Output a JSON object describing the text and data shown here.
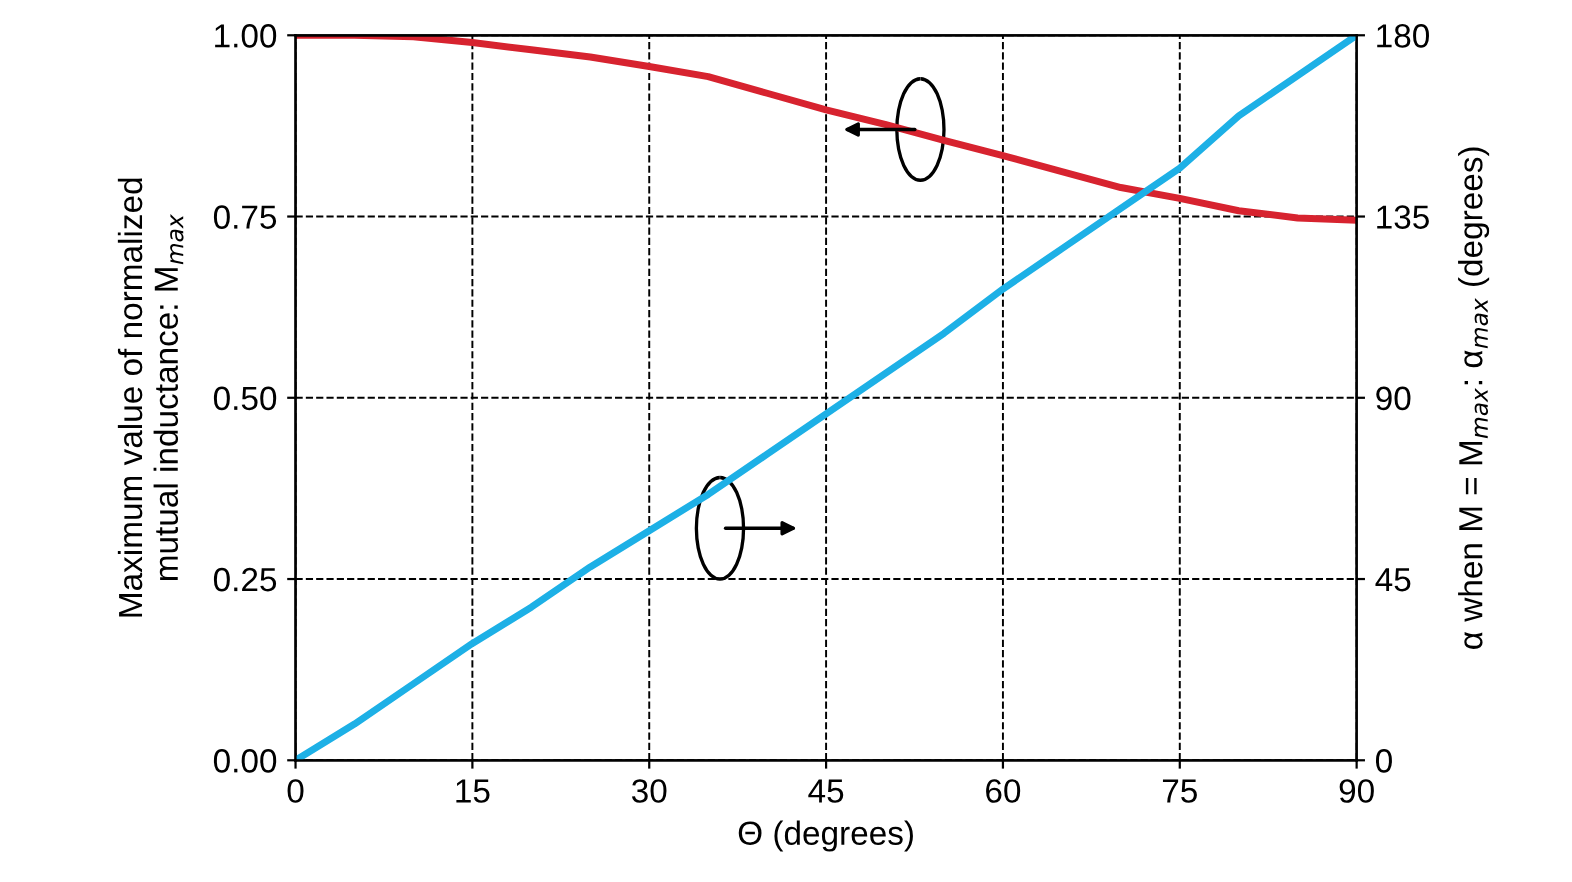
{
  "chart_data": {
    "type": "line",
    "xlabel": "Θ (degrees)",
    "ylabel": "Maximum value of normalized\nmutual inductance: M$_{max}$",
    "y2label": "α when M = M$_{max}$: α$_{max}$ (degrees)",
    "x": [
      0,
      5,
      10,
      15,
      20,
      25,
      30,
      35,
      40,
      45,
      50,
      55,
      60,
      65,
      70,
      75,
      80,
      85,
      90
    ],
    "series": [
      {
        "color": "#d7232f",
        "values": [
          1.0,
          1.0,
          0.998,
          0.99,
          0.98,
          0.97,
          0.957,
          0.943,
          0.92,
          0.897,
          0.877,
          0.855,
          0.834,
          0.812,
          0.79,
          0.775,
          0.758,
          0.748,
          0.745
        ]
      },
      {
        "color": "#1db0e6",
        "axis": "y2",
        "values": [
          0,
          9,
          19,
          29,
          38,
          48,
          57,
          66,
          76,
          86,
          96,
          106,
          117,
          127,
          137,
          147,
          160,
          170,
          180
        ]
      }
    ],
    "xlim": [
      0,
      90
    ],
    "xticks": [
      0,
      15,
      30,
      45,
      60,
      75,
      90
    ],
    "ylim": [
      0,
      1
    ],
    "yticks": [
      {
        "value": 0,
        "label": "0.00"
      },
      {
        "value": 0.25,
        "label": "0.25"
      },
      {
        "value": 0.5,
        "label": "0.50"
      },
      {
        "value": 0.75,
        "label": "0.75"
      },
      {
        "value": 1,
        "label": "1.00"
      }
    ],
    "y2lim": [
      0,
      180
    ],
    "y2ticks": [
      0,
      45,
      90,
      135,
      180
    ],
    "grid": true,
    "line_style": "solid",
    "marker": "none"
  }
}
